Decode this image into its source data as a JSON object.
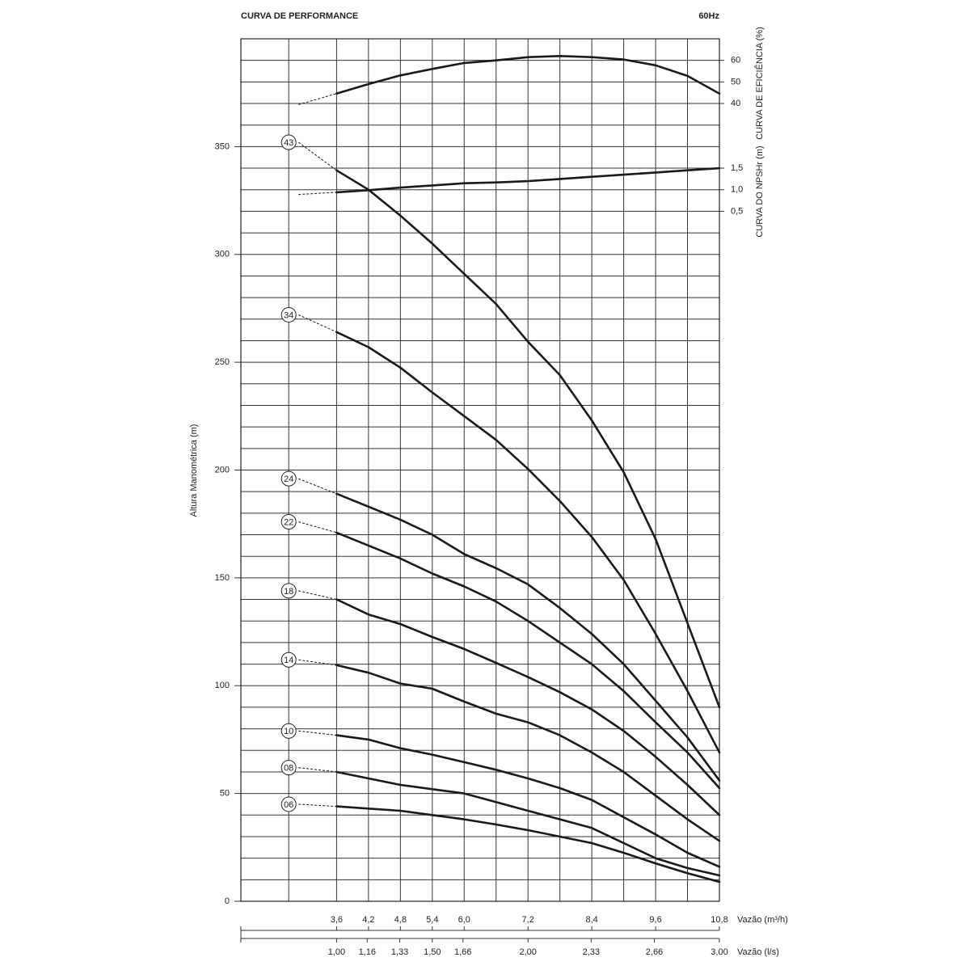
{
  "chart_data": {
    "type": "line",
    "title": "CURVA DE PERFORMANCE",
    "subtitle": "60Hz",
    "y_label": "Altura Manométrica (m)",
    "y2_label": "CURVA DE EFICIÊNCIA (%)",
    "y3_label": "CURVA DO NPSHr (m)",
    "x_label": "Vazão (m³/h)",
    "x2_label": "Vazão (l/s)",
    "x": [
      2.7,
      3.6,
      4.2,
      4.8,
      5.4,
      6.0,
      6.6,
      7.2,
      7.8,
      8.4,
      9.0,
      9.6,
      10.2,
      10.8
    ],
    "xlim": [
      1.8,
      10.8
    ],
    "xticks": [
      {
        "value": 3.6,
        "label": "3,6"
      },
      {
        "value": 4.2,
        "label": "4,2"
      },
      {
        "value": 4.8,
        "label": "4,8"
      },
      {
        "value": 5.4,
        "label": "5,4"
      },
      {
        "value": 6.0,
        "label": "6,0"
      },
      {
        "value": 7.2,
        "label": "7,2"
      },
      {
        "value": 8.4,
        "label": "8,4"
      },
      {
        "value": 9.6,
        "label": "9,6"
      },
      {
        "value": 10.8,
        "label": "10,8"
      }
    ],
    "xgrid": [
      1.8,
      2.7,
      3.6,
      4.2,
      4.8,
      5.4,
      6.0,
      6.6,
      7.2,
      7.8,
      8.4,
      9.0,
      9.6,
      10.2,
      10.8
    ],
    "x2lim": [
      0.5,
      3.0
    ],
    "x2ticks": [
      {
        "value": 1.0,
        "label": "1,00"
      },
      {
        "value": 1.16,
        "label": "1,16"
      },
      {
        "value": 1.33,
        "label": "1,33"
      },
      {
        "value": 1.5,
        "label": "1,50"
      },
      {
        "value": 1.66,
        "label": "1,66"
      },
      {
        "value": 2.0,
        "label": "2,00"
      },
      {
        "value": 2.33,
        "label": "2,33"
      },
      {
        "value": 2.66,
        "label": "2,66"
      },
      {
        "value": 3.0,
        "label": "3,00"
      }
    ],
    "ylim": [
      0,
      400
    ],
    "yticks": [
      0,
      50,
      100,
      150,
      200,
      250,
      300,
      350
    ],
    "ygrid": [
      0,
      10,
      20,
      30,
      40,
      50,
      60,
      70,
      80,
      90,
      100,
      110,
      120,
      130,
      140,
      150,
      160,
      170,
      180,
      190,
      200,
      210,
      220,
      230,
      240,
      250,
      260,
      270,
      280,
      290,
      300,
      310,
      320,
      330,
      340,
      350,
      360,
      370,
      380,
      390,
      400
    ],
    "y2lim": [
      -330,
      70
    ],
    "y2ticks": [
      40,
      50,
      60
    ],
    "y3lim": [
      -15.5,
      4.5
    ],
    "y3ticks": [
      {
        "value": 0.5,
        "label": "0,5"
      },
      {
        "value": 1.0,
        "label": "1,0"
      },
      {
        "value": 1.5,
        "label": "1,5"
      }
    ],
    "color": "#1a1a1a",
    "series": [
      {
        "name": "43",
        "values": [
          352,
          339,
          330,
          318,
          305,
          291,
          277,
          259.5,
          244,
          223,
          199,
          168,
          129,
          90
        ]
      },
      {
        "name": "34",
        "values": [
          272,
          264,
          257,
          247.5,
          236,
          225,
          214,
          200.5,
          185.6,
          169,
          149,
          124,
          97.5,
          69
        ]
      },
      {
        "name": "24",
        "values": [
          196,
          189,
          183,
          177,
          170,
          161,
          154.5,
          147,
          136,
          124,
          110,
          93,
          76,
          56
        ]
      },
      {
        "name": "22",
        "values": [
          176,
          171,
          165,
          159,
          152,
          146,
          139,
          130,
          120,
          110,
          97.5,
          83,
          69,
          52.5
        ]
      },
      {
        "name": "18",
        "values": [
          144,
          140,
          133,
          128.6,
          122.6,
          117,
          110.6,
          104,
          97,
          89,
          79,
          67,
          54,
          40
        ]
      },
      {
        "name": "14",
        "values": [
          112,
          109.5,
          106,
          101,
          98.6,
          92.6,
          87,
          83,
          77,
          69,
          60,
          49,
          38,
          28
        ]
      },
      {
        "name": "10",
        "values": [
          79,
          77,
          75,
          71,
          68,
          64.5,
          61,
          57,
          52.5,
          47,
          39,
          31,
          22.5,
          16
        ]
      },
      {
        "name": "08",
        "values": [
          62,
          60,
          57,
          54,
          52,
          50,
          46,
          42,
          38,
          34,
          27,
          20,
          15.4,
          12
        ]
      },
      {
        "name": "06",
        "values": [
          45,
          44,
          43,
          42,
          40,
          38,
          35.6,
          33,
          30,
          27,
          22.5,
          17.6,
          13,
          9
        ]
      },
      {
        "axis": "y2",
        "values": [
          39.5,
          44.6,
          49,
          53,
          56,
          58.8,
          60,
          61.5,
          62,
          61.5,
          60.4,
          57.7,
          52.8,
          44.6
        ]
      },
      {
        "axis": "y3",
        "values": [
          0.89,
          0.94,
          0.99,
          1.05,
          1.1,
          1.15,
          1.17,
          1.2,
          1.25,
          1.3,
          1.35,
          1.4,
          1.45,
          1.5
        ]
      }
    ]
  }
}
